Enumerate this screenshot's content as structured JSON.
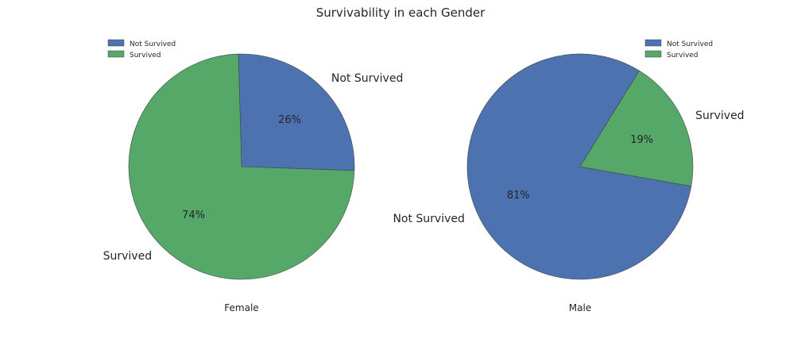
{
  "figure_title": "Survivability in each Gender",
  "colors": {
    "Not Survived": "#4c72b0",
    "Survived": "#55a868",
    "edge": "#444444"
  },
  "chart_data": [
    {
      "type": "pie",
      "title": "",
      "xlabel": "Female",
      "categories": [
        "Not Survived",
        "Survived"
      ],
      "values": [
        26,
        74
      ],
      "value_labels": [
        "26%",
        "74%"
      ],
      "legend": {
        "entries": [
          "Not Survived",
          "Survived"
        ],
        "placement": "upper-left"
      }
    },
    {
      "type": "pie",
      "title": "",
      "xlabel": "Male",
      "categories": [
        "Not Survived",
        "Survived"
      ],
      "values": [
        81,
        19
      ],
      "value_labels": [
        "81%",
        "19%"
      ],
      "legend": {
        "entries": [
          "Not Survived",
          "Survived"
        ],
        "placement": "upper-right"
      }
    }
  ]
}
